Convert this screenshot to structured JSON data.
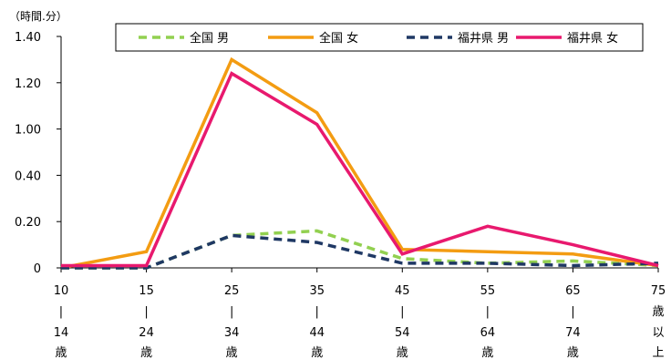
{
  "chart_data": {
    "type": "line",
    "unit_label": "（時間.分）",
    "categories": [
      [
        "10",
        "|",
        "14",
        "歳"
      ],
      [
        "15",
        "|",
        "24",
        "歳"
      ],
      [
        "25",
        "|",
        "34",
        "歳"
      ],
      [
        "35",
        "|",
        "44",
        "歳"
      ],
      [
        "45",
        "|",
        "54",
        "歳"
      ],
      [
        "55",
        "|",
        "64",
        "歳"
      ],
      [
        "65",
        "|",
        "74",
        "歳"
      ],
      [
        "75",
        "歳",
        "以",
        "上"
      ]
    ],
    "y_ticks": [
      "0",
      "0.20",
      "0.40",
      "1.00",
      "1.20",
      "1.40"
    ],
    "series": [
      {
        "name": "全国 男",
        "color": "#92D050",
        "dash": "dashed",
        "values": [
          0.0,
          0.0,
          0.14,
          0.16,
          0.04,
          0.02,
          0.03,
          0.01
        ]
      },
      {
        "name": "全国 女",
        "color": "#F39C12",
        "dash": "solid",
        "values": [
          0.0,
          0.07,
          1.3,
          1.07,
          0.08,
          0.07,
          0.06,
          0.01
        ]
      },
      {
        "name": "福井県 男",
        "color": "#1F3864",
        "dash": "dashed",
        "values": [
          0.0,
          0.0,
          0.14,
          0.11,
          0.02,
          0.02,
          0.01,
          0.02
        ]
      },
      {
        "name": "福井県 女",
        "color": "#E8196E",
        "dash": "solid",
        "values": [
          0.01,
          0.01,
          1.24,
          1.02,
          0.06,
          0.18,
          0.1,
          0.01
        ]
      }
    ],
    "ylim": [
      0,
      1.4
    ],
    "legend_position": "top",
    "grid": false
  }
}
